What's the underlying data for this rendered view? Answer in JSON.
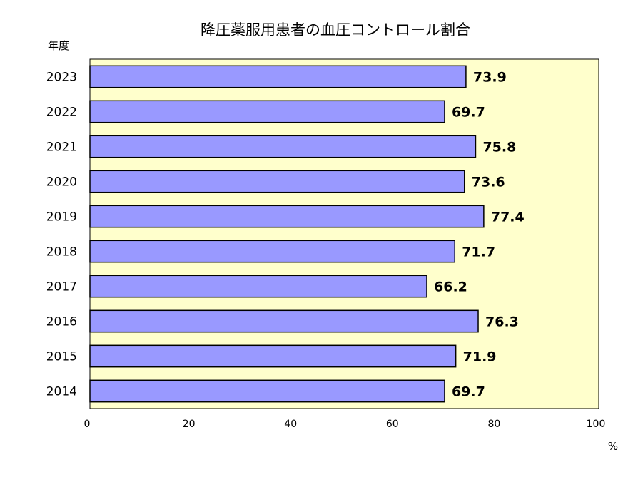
{
  "chart_data": {
    "type": "bar",
    "orientation": "horizontal",
    "title": "降圧薬服用患者の血圧コントロール割合",
    "ylabel": "年度",
    "xlabel": "%",
    "categories": [
      "2023",
      "2022",
      "2021",
      "2020",
      "2019",
      "2018",
      "2017",
      "2016",
      "2015",
      "2014"
    ],
    "values": [
      73.9,
      69.7,
      75.8,
      73.6,
      77.4,
      71.7,
      66.2,
      76.3,
      71.9,
      69.7
    ],
    "data_labels": [
      "73.9",
      "69.7",
      "75.8",
      "73.6",
      "77.4",
      "71.7",
      "66.2",
      "76.3",
      "71.9",
      "69.7"
    ],
    "xlim": [
      0,
      100
    ],
    "xticks": [
      0,
      20,
      40,
      60,
      80,
      100
    ],
    "xtick_labels": [
      "0",
      "20",
      "40",
      "60",
      "80",
      "100"
    ],
    "grid": false,
    "legend": "none",
    "colors": {
      "bar_fill": "#9999ff",
      "bar_stroke": "#000000",
      "plot_background": "#ffffcc"
    }
  }
}
